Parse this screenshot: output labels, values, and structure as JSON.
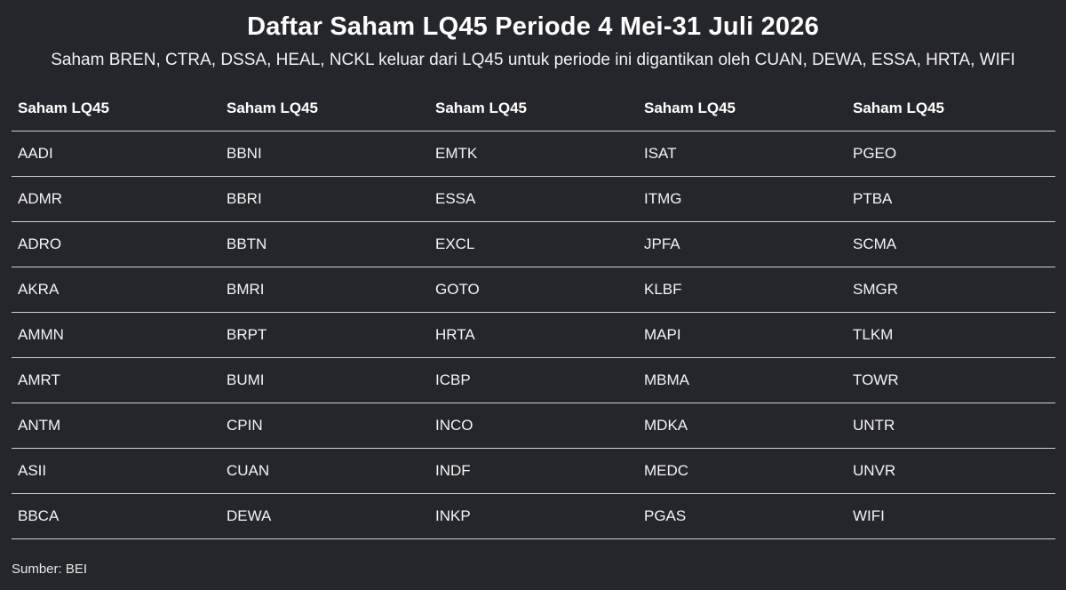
{
  "title": "Daftar Saham LQ45 Periode 4 Mei-31 Juli 2026",
  "subtitle": "Saham BREN, CTRA, DSSA, HEAL, NCKL keluar dari LQ45 untuk periode ini digantikan oleh CUAN, DEWA, ESSA, HRTA, WIFI",
  "table": {
    "headers": [
      "Saham LQ45",
      "Saham LQ45",
      "Saham LQ45",
      "Saham LQ45",
      "Saham LQ45"
    ],
    "rows": [
      [
        "AADI",
        "BBNI",
        "EMTK",
        "ISAT",
        "PGEO"
      ],
      [
        "ADMR",
        "BBRI",
        "ESSA",
        "ITMG",
        "PTBA"
      ],
      [
        "ADRO",
        "BBTN",
        "EXCL",
        "JPFA",
        "SCMA"
      ],
      [
        "AKRA",
        "BMRI",
        "GOTO",
        "KLBF",
        "SMGR"
      ],
      [
        "AMMN",
        "BRPT",
        "HRTA",
        "MAPI",
        "TLKM"
      ],
      [
        "AMRT",
        "BUMI",
        "ICBP",
        "MBMA",
        "TOWR"
      ],
      [
        "ANTM",
        "CPIN",
        "INCO",
        "MDKA",
        "UNTR"
      ],
      [
        "ASII",
        "CUAN",
        "INDF",
        "MEDC",
        "UNVR"
      ],
      [
        "BBCA",
        "DEWA",
        "INKP",
        "PGAS",
        "WIFI"
      ]
    ]
  },
  "source": "Sumber: BEI",
  "colors": {
    "background": "#25262b",
    "text": "#ffffff",
    "divider": "#cfd1d6"
  }
}
